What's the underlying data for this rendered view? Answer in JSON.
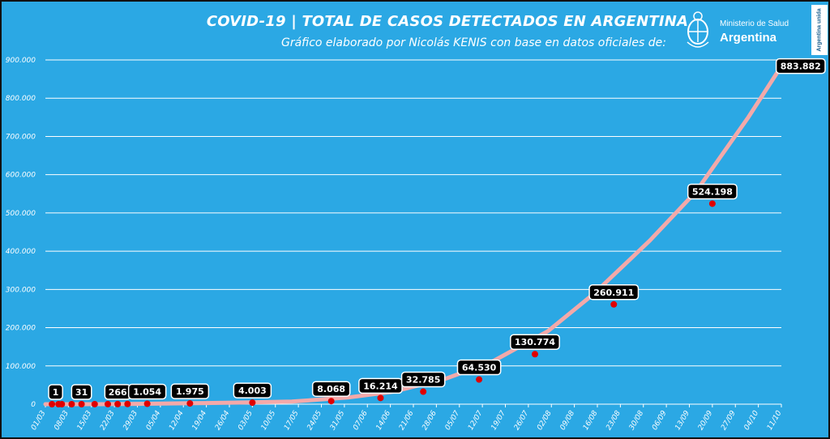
{
  "header": {
    "title": "COVID-19  |  TOTAL DE CASOS DETECTADOS EN ARGENTINA",
    "subtitle": "Gráfico elaborado por Nicolás KENIS con base en datos oficiales de:"
  },
  "logo": {
    "ministry": "Ministerio de Salud",
    "country": "Argentina",
    "badge": "Argentina unida",
    "icon": "argentina-seal-icon"
  },
  "colors": {
    "background": "#2ba8e4",
    "line": "#f3a9a9",
    "point": "#e00000",
    "grid": "#ffffff",
    "label_bg": "#000000",
    "label_text": "#ffffff"
  },
  "chart_data": {
    "type": "line",
    "title": "COVID-19  |  TOTAL DE CASOS DETECTADOS EN ARGENTINA",
    "xlabel": "",
    "ylabel": "",
    "x_range": [
      "2020-03-01",
      "2020-10-11"
    ],
    "ylim": [
      0,
      900000
    ],
    "y_ticks": [
      0,
      100000,
      200000,
      300000,
      400000,
      500000,
      600000,
      700000,
      800000,
      900000
    ],
    "y_tick_labels": [
      "0",
      "100.000",
      "200.000",
      "300.000",
      "400.000",
      "500.000",
      "600.000",
      "700.000",
      "800.000",
      "900.000"
    ],
    "x_tick_dates": [
      "2020-03-01",
      "2020-03-08",
      "2020-03-15",
      "2020-03-22",
      "2020-03-29",
      "2020-04-05",
      "2020-04-12",
      "2020-04-19",
      "2020-04-26",
      "2020-05-03",
      "2020-05-10",
      "2020-05-17",
      "2020-05-24",
      "2020-05-31",
      "2020-06-07",
      "2020-06-14",
      "2020-06-21",
      "2020-06-28",
      "2020-07-05",
      "2020-07-12",
      "2020-07-19",
      "2020-07-26",
      "2020-08-02",
      "2020-08-09",
      "2020-08-16",
      "2020-08-23",
      "2020-08-30",
      "2020-09-06",
      "2020-09-13",
      "2020-09-20",
      "2020-09-27",
      "2020-10-04",
      "2020-10-11"
    ],
    "x_tick_labels": [
      "01/03",
      "08/03",
      "15/03",
      "22/03",
      "29/03",
      "05/04",
      "12/04",
      "19/04",
      "26/04",
      "03/05",
      "10/05",
      "17/05",
      "24/05",
      "31/05",
      "07/06",
      "14/06",
      "21/06",
      "28/06",
      "05/07",
      "12/07",
      "19/07",
      "26/07",
      "02/08",
      "09/08",
      "16/08",
      "23/08",
      "30/08",
      "06/09",
      "13/09",
      "20/09",
      "27/09",
      "04/10",
      "11/10"
    ],
    "grid": true,
    "series": [
      {
        "x": [
          "2020-03-01",
          "2020-03-15",
          "2020-03-22",
          "2020-04-01",
          "2020-04-15",
          "2020-05-01",
          "2020-05-15",
          "2020-06-01",
          "2020-06-15",
          "2020-07-01",
          "2020-07-15",
          "2020-08-01",
          "2020-08-15",
          "2020-09-01",
          "2020-09-15",
          "2020-10-01",
          "2020-10-11"
        ],
        "y": [
          1,
          56,
          266,
          1054,
          2443,
          4428,
          6879,
          17415,
          32785,
          67197,
          111160,
          191302,
          289100,
          428239,
          555537,
          751001,
          883882
        ]
      }
    ],
    "markers": [
      {
        "x": "2020-03-03",
        "y": 1,
        "label": "1"
      },
      {
        "x": "2020-03-05",
        "y": 2,
        "label": ""
      },
      {
        "x": "2020-03-06",
        "y": 2,
        "label": ""
      },
      {
        "x": "2020-03-09",
        "y": 17,
        "label": ""
      },
      {
        "x": "2020-03-12",
        "y": 31,
        "label": "31"
      },
      {
        "x": "2020-03-16",
        "y": 65,
        "label": ""
      },
      {
        "x": "2020-03-20",
        "y": 158,
        "label": ""
      },
      {
        "x": "2020-03-23",
        "y": 266,
        "label": "266"
      },
      {
        "x": "2020-03-26",
        "y": 502,
        "label": ""
      },
      {
        "x": "2020-04-01",
        "y": 1054,
        "label": "1.054"
      },
      {
        "x": "2020-04-14",
        "y": 1975,
        "label": "1.975"
      },
      {
        "x": "2020-05-03",
        "y": 4003,
        "label": "4.003"
      },
      {
        "x": "2020-05-27",
        "y": 8068,
        "label": "8.068"
      },
      {
        "x": "2020-06-11",
        "y": 16214,
        "label": "16.214"
      },
      {
        "x": "2020-06-24",
        "y": 32785,
        "label": "32.785"
      },
      {
        "x": "2020-07-11",
        "y": 64530,
        "label": "64.530"
      },
      {
        "x": "2020-07-28",
        "y": 130774,
        "label": "130.774"
      },
      {
        "x": "2020-08-21",
        "y": 260911,
        "label": "260.911"
      },
      {
        "x": "2020-09-20",
        "y": 524198,
        "label": "524.198"
      },
      {
        "x": "2020-10-11",
        "y": 883882,
        "label": "883.882"
      }
    ]
  }
}
